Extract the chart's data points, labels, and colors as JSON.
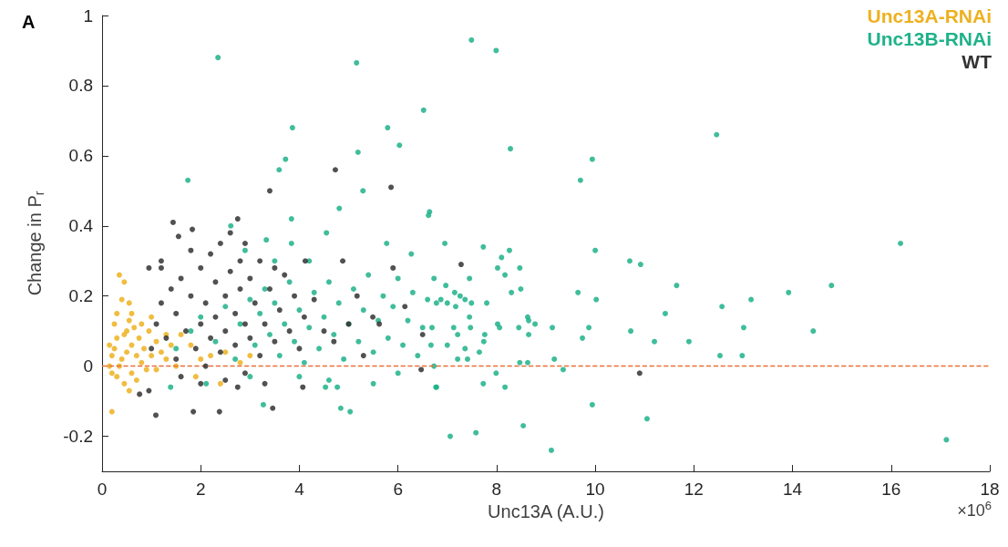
{
  "chart_data": {
    "type": "scatter",
    "xlabel": "Unc13A (A.U.)",
    "ylabel": "Change in P$_{r}$",
    "annotations": [
      "A",
      "×10$^{6}$"
    ],
    "xlim": [
      0,
      18
    ],
    "xticks": [
      0,
      2,
      4,
      6,
      8,
      10,
      12,
      14,
      16,
      18
    ],
    "ylim": [
      -0.3,
      1
    ],
    "yticks": [
      -0.2,
      0,
      0.2,
      0.4,
      0.6,
      0.8,
      1
    ],
    "grid": false,
    "legend": "top right",
    "marker": "circle",
    "ref_lines": [
      {
        "axis": "y",
        "value": 0,
        "color": "#e8703a",
        "line_style": "dashed"
      }
    ],
    "series": [
      {
        "name": "Unc13A-RNAi",
        "color": "#edb120",
        "x": [
          0.2,
          0.35,
          0.45,
          0.4,
          0.55,
          0.6,
          0.55,
          0.5,
          0.3,
          0.25,
          0.2,
          0.15,
          0.2,
          0.3,
          0.45,
          0.55,
          0.35,
          0.4,
          0.5,
          0.6,
          0.7,
          0.8,
          0.9,
          0.75,
          0.85,
          1.0,
          1.1,
          1.2,
          1.3,
          1.4,
          1.5,
          1.6,
          1.8,
          2.0,
          2.2,
          2.5,
          2.8,
          3.0,
          1.9,
          2.4,
          1.1,
          0.25,
          0.3,
          0.15,
          0.65,
          0.95,
          1.0,
          0.45,
          0.6,
          0.7,
          1.3,
          0.8
        ],
        "values": [
          -0.13,
          0.26,
          0.24,
          0.19,
          0.18,
          0.15,
          0.13,
          0.1,
          0.08,
          0.05,
          0.03,
          0.0,
          -0.02,
          -0.03,
          -0.05,
          -0.07,
          0.0,
          0.02,
          0.04,
          0.06,
          0.03,
          0.01,
          -0.01,
          0.08,
          0.05,
          0.03,
          0.07,
          0.04,
          0.02,
          0.06,
          0.0,
          0.09,
          0.06,
          0.02,
          0.03,
          0.04,
          0.01,
          0.03,
          -0.03,
          -0.05,
          -0.01,
          0.12,
          0.15,
          0.06,
          0.11,
          0.1,
          0.14,
          0.09,
          -0.02,
          -0.04,
          0.09,
          0.12
        ]
      },
      {
        "name": "Unc13B-RNAi",
        "color": "#1fb28a",
        "x": [
          2.35,
          5.16,
          6.52,
          3.86,
          5.79,
          6.03,
          5.19,
          3.72,
          3.59,
          1.74,
          5.29,
          4.81,
          6.62,
          3.84,
          2.61,
          4.55,
          3.84,
          5.77,
          6.27,
          3.33,
          4.84,
          5.03,
          3.27,
          6.77,
          4.53,
          4.77,
          1.39,
          2.11,
          7.49,
          7.99,
          12.46,
          8.28,
          9.94,
          9.7,
          6.64,
          16.19,
          6.95,
          7.73,
          8.26,
          8.1,
          10.0,
          8.02,
          8.47,
          8.17,
          10.7,
          10.92,
          6.73,
          7.45,
          8.49,
          6.97,
          7.15,
          7.26,
          6.87,
          6.78,
          7.0,
          7.36,
          7.49,
          7.17,
          7.8,
          8.3,
          9.65,
          10.02,
          11.65,
          13.92,
          14.79,
          13.16,
          12.57,
          11.42,
          8.63,
          7.45,
          8.65,
          8.78,
          8.02,
          8.06,
          8.45,
          9.13,
          9.87,
          13.01,
          14.42,
          6.69,
          7.13,
          7.47,
          7.21,
          10.72,
          9.74,
          7.76,
          8.65,
          11.2,
          11.9,
          7.74,
          7.0,
          7.65,
          6.67,
          7.36,
          7.21,
          7.41,
          12.98,
          12.53,
          8.47,
          8.63,
          9.17,
          9.35,
          6.73,
          7.99,
          6.78,
          7.73,
          8.17,
          9.94,
          11.05,
          8.54,
          7.58,
          7.06,
          9.11,
          17.12,
          1.5,
          1.8,
          2.0,
          2.3,
          2.5,
          2.7,
          2.8,
          3.0,
          3.1,
          3.2,
          3.3,
          3.4,
          3.5,
          3.6,
          3.7,
          3.8,
          3.9,
          4.0,
          4.1,
          4.2,
          4.3,
          4.4,
          4.5,
          4.6,
          4.7,
          4.8,
          4.9,
          5.0,
          5.1,
          5.2,
          5.3,
          5.4,
          5.5,
          5.6,
          5.7,
          5.8,
          5.9,
          6.0,
          6.1,
          6.2,
          6.3,
          6.4,
          6.5,
          6.6,
          4.2,
          4.0,
          4.6,
          5.5,
          6.0,
          3.0,
          3.5,
          2.9
        ],
        "values": [
          0.88,
          0.865,
          0.73,
          0.68,
          0.68,
          0.63,
          0.61,
          0.59,
          0.56,
          0.53,
          0.5,
          0.45,
          0.43,
          0.42,
          0.4,
          0.38,
          0.35,
          0.35,
          0.32,
          0.36,
          -0.12,
          -0.13,
          -0.11,
          -0.06,
          -0.06,
          -0.06,
          -0.06,
          -0.05,
          0.93,
          0.9,
          0.66,
          0.62,
          0.59,
          0.53,
          0.44,
          0.35,
          0.35,
          0.34,
          0.33,
          0.31,
          0.33,
          0.28,
          0.28,
          0.26,
          0.3,
          0.29,
          0.25,
          0.25,
          0.22,
          0.23,
          0.21,
          0.2,
          0.19,
          0.18,
          0.18,
          0.19,
          0.18,
          0.17,
          0.18,
          0.21,
          0.21,
          0.19,
          0.23,
          0.21,
          0.23,
          0.19,
          0.17,
          0.15,
          0.14,
          0.14,
          0.13,
          0.12,
          0.12,
          0.11,
          0.11,
          0.11,
          0.11,
          0.11,
          0.1,
          0.11,
          0.11,
          0.11,
          0.09,
          0.1,
          0.08,
          0.09,
          0.09,
          0.07,
          0.07,
          0.07,
          0.06,
          0.04,
          0.06,
          0.05,
          0.02,
          0.02,
          0.03,
          0.03,
          0.01,
          0.01,
          0.02,
          -0.01,
          0.0,
          -0.02,
          -0.06,
          -0.05,
          -0.06,
          -0.11,
          -0.15,
          -0.17,
          -0.19,
          -0.2,
          -0.24,
          -0.21,
          0.05,
          0.1,
          0.14,
          0.07,
          0.17,
          0.02,
          0.12,
          0.19,
          0.06,
          0.15,
          0.22,
          0.09,
          0.18,
          0.03,
          0.12,
          0.24,
          0.07,
          0.16,
          0.01,
          0.11,
          0.21,
          0.05,
          0.14,
          0.24,
          0.09,
          0.18,
          0.02,
          0.12,
          0.22,
          0.07,
          0.16,
          0.26,
          0.04,
          0.13,
          0.2,
          0.08,
          0.17,
          0.25,
          0.06,
          0.13,
          0.21,
          0.03,
          0.11,
          0.19,
          0.3,
          -0.03,
          -0.04,
          -0.05,
          -0.02,
          -0.03,
          0.3,
          0.33
        ]
      },
      {
        "name": "WT",
        "color": "#333333",
        "x": [
          7.28,
          10.9,
          4.73,
          5.86,
          3.4,
          1.44,
          2.75,
          1.83,
          1.55,
          4.88,
          5.9,
          1.2,
          0.95,
          4.12,
          5.17,
          6.14,
          5.49,
          5.62,
          6.5,
          6.47,
          0.76,
          1.09,
          1.85,
          2.38,
          3.46,
          2.75,
          4.07,
          0.95,
          1.0,
          1.1,
          1.2,
          1.3,
          1.4,
          1.5,
          1.5,
          1.6,
          1.7,
          1.8,
          1.9,
          2.0,
          2.0,
          2.1,
          2.1,
          2.2,
          2.2,
          2.3,
          2.3,
          2.4,
          2.4,
          2.5,
          2.5,
          2.6,
          2.6,
          2.7,
          2.7,
          2.8,
          2.8,
          2.9,
          2.9,
          3.0,
          3.0,
          3.1,
          3.2,
          3.2,
          3.3,
          3.4,
          3.5,
          3.6,
          3.7,
          3.8,
          3.9,
          4.0,
          4.1,
          4.3,
          4.5,
          4.7,
          5.0,
          5.3,
          1.6,
          2.0,
          2.5,
          3.3,
          1.2,
          1.8,
          2.9,
          3.5
        ],
        "values": [
          0.29,
          -0.02,
          0.56,
          0.51,
          0.5,
          0.41,
          0.42,
          0.39,
          0.37,
          0.3,
          0.28,
          0.3,
          0.28,
          0.3,
          0.2,
          0.17,
          0.14,
          0.12,
          0.09,
          -0.01,
          -0.08,
          -0.14,
          -0.13,
          -0.13,
          -0.12,
          -0.06,
          -0.06,
          -0.07,
          0.05,
          0.12,
          0.18,
          0.08,
          0.22,
          0.15,
          0.02,
          0.25,
          0.1,
          0.2,
          0.05,
          0.28,
          0.12,
          0.18,
          0.0,
          0.32,
          0.08,
          0.24,
          0.14,
          0.35,
          0.04,
          0.2,
          0.1,
          0.38,
          0.27,
          0.15,
          0.06,
          0.3,
          0.22,
          0.12,
          -0.02,
          0.25,
          0.08,
          0.18,
          0.3,
          0.03,
          0.12,
          0.22,
          0.07,
          0.16,
          0.26,
          0.1,
          0.2,
          0.05,
          0.14,
          0.19,
          0.1,
          0.07,
          0.12,
          0.03,
          -0.03,
          -0.05,
          -0.04,
          -0.05,
          0.28,
          0.33,
          0.35,
          0.28
        ]
      }
    ]
  }
}
